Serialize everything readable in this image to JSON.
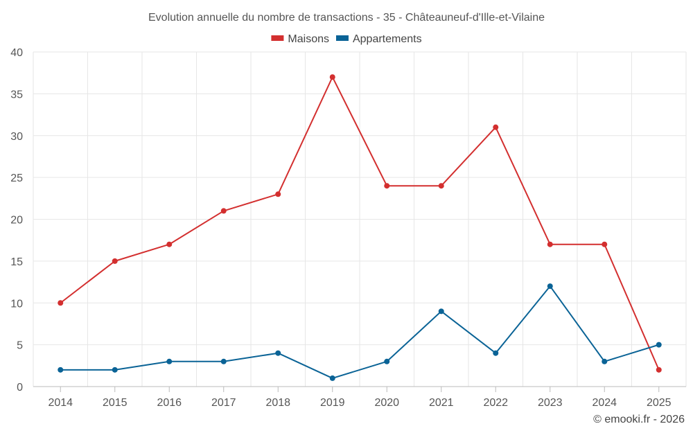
{
  "chart_data": {
    "type": "line",
    "title": "Evolution annuelle du nombre de transactions - 35 - Châteauneuf-d'Ille-et-Vilaine",
    "categories": [
      "2014",
      "2015",
      "2016",
      "2017",
      "2018",
      "2019",
      "2020",
      "2021",
      "2022",
      "2023",
      "2024",
      "2025"
    ],
    "series": [
      {
        "name": "Maisons",
        "color": "#d32f2f",
        "values": [
          10,
          15,
          17,
          21,
          23,
          37,
          24,
          24,
          31,
          17,
          17,
          2
        ]
      },
      {
        "name": "Appartements",
        "color": "#0a6396",
        "values": [
          2,
          2,
          3,
          3,
          4,
          1,
          3,
          9,
          4,
          12,
          3,
          5
        ]
      }
    ],
    "ylim": [
      0,
      40
    ],
    "yticks": [
      0,
      5,
      10,
      15,
      20,
      25,
      30,
      35,
      40
    ],
    "xlabel": "",
    "ylabel": "",
    "grid": true,
    "legend": "top-center"
  },
  "credit": "© emooki.fr - 2026"
}
